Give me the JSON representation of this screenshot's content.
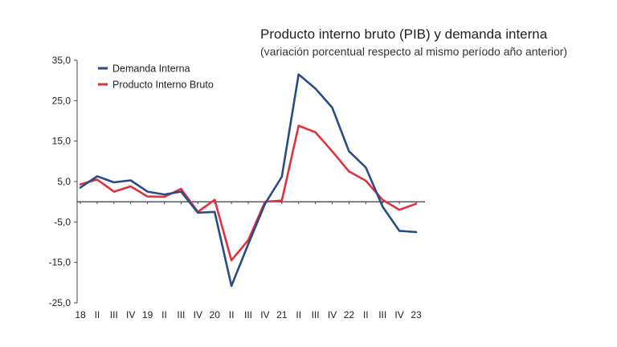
{
  "chart_data": {
    "type": "line",
    "title": "Producto interno bruto (PIB) y demanda interna",
    "subtitle": "(variación porcentual respecto al mismo período año anterior)",
    "xlabel": "",
    "ylabel": "",
    "ylim": [
      -25,
      35
    ],
    "yticks": [
      35,
      25,
      15,
      5,
      -5,
      -15,
      -25
    ],
    "ytick_labels": [
      "35,0",
      "25,0",
      "15,0",
      "5,0",
      "-5,0",
      "-15,0",
      "-25,0"
    ],
    "categories": [
      "18",
      "II",
      "III",
      "IV",
      "19",
      "II",
      "III",
      "IV",
      "20",
      "II",
      "III",
      "IV",
      "21",
      "II",
      "III",
      "IV",
      "22",
      "II",
      "III",
      "IV",
      "23"
    ],
    "grid": false,
    "legend_position": "top-left",
    "series": [
      {
        "name": "Demanda Interna",
        "color": "#2a4b86",
        "values": [
          3.5,
          6.3,
          4.8,
          5.3,
          2.5,
          1.8,
          2.5,
          -2.7,
          -2.5,
          -20.8,
          -10.5,
          -0.5,
          6.2,
          31.5,
          28.0,
          23.3,
          12.5,
          8.5,
          -1.2,
          -7.2,
          -7.5
        ]
      },
      {
        "name": "Producto Interno Bruto",
        "color": "#e0313c",
        "values": [
          4.3,
          5.5,
          2.5,
          3.8,
          1.3,
          1.2,
          3.2,
          -2.5,
          0.5,
          -14.5,
          -9.5,
          0.0,
          0.3,
          18.8,
          17.2,
          12.5,
          7.5,
          5.2,
          0.5,
          -2.0,
          -0.5
        ]
      }
    ]
  }
}
